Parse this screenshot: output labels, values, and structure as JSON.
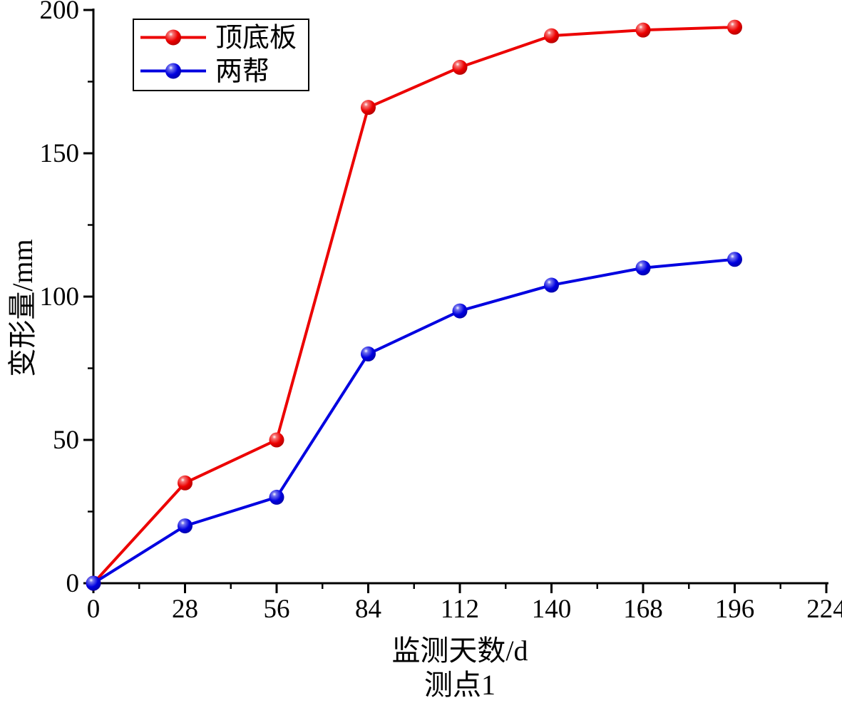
{
  "figure": {
    "background": "#ffffff",
    "axis_color": "#000000"
  },
  "chart_data": {
    "type": "line",
    "title": "",
    "xlabel": "监测天数/d",
    "ylabel": "变形量/mm",
    "subtitle": "测点1",
    "xlim": [
      0,
      224
    ],
    "ylim": [
      0,
      200
    ],
    "x_ticks": [
      0,
      28,
      56,
      84,
      112,
      140,
      168,
      196,
      224
    ],
    "y_ticks": [
      0,
      50,
      100,
      150,
      200
    ],
    "x_minor_ticks": [
      14,
      42,
      70,
      98,
      126,
      154,
      182,
      210
    ],
    "y_minor_ticks": [
      25,
      75,
      125,
      175
    ],
    "grid": false,
    "legend_position": "top-left",
    "x": [
      0,
      28,
      56,
      84,
      112,
      140,
      168,
      196
    ],
    "series": [
      {
        "name": "顶底板",
        "color": "#ec0000",
        "values": [
          0,
          35,
          50,
          166,
          180,
          191,
          193,
          194
        ]
      },
      {
        "name": "两帮",
        "color": "#0000e0",
        "values": [
          0,
          20,
          30,
          80,
          95,
          104,
          110,
          113
        ]
      }
    ]
  }
}
